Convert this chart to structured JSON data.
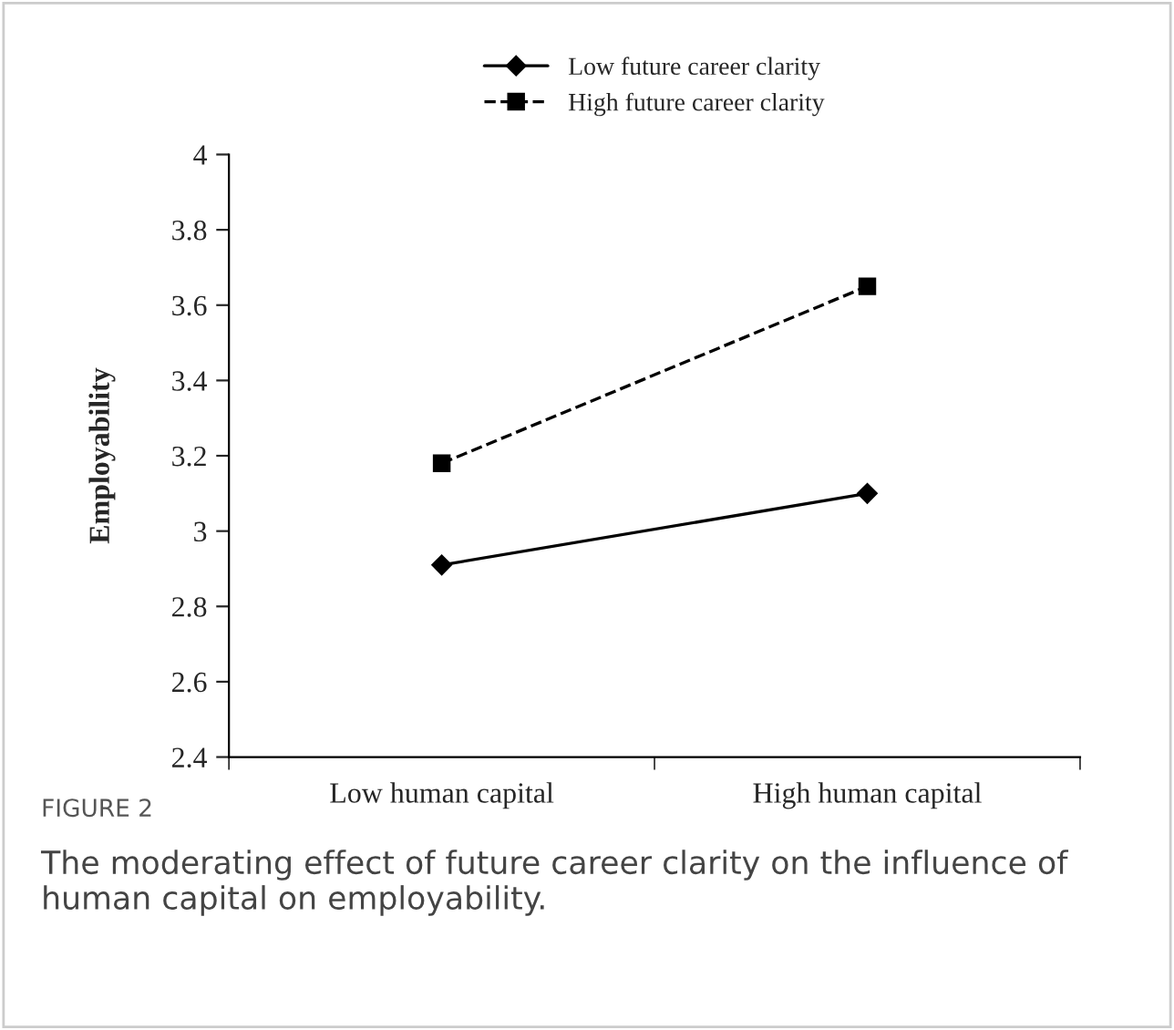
{
  "chart_data": {
    "type": "line",
    "ylabel": "Employability",
    "categories": [
      "Low human capital",
      "High human capital"
    ],
    "series": [
      {
        "name": "Low future career clarity",
        "color": "#000000",
        "values": [
          2.91,
          3.1
        ],
        "marker": "diamond",
        "line_style": "solid"
      },
      {
        "name": "High future career clarity",
        "color": "#000000",
        "values": [
          3.18,
          3.65
        ],
        "marker": "square",
        "line_style": "dashed"
      }
    ],
    "ylim": [
      2.4,
      4
    ],
    "yticks": [
      2.4,
      2.6,
      2.8,
      3,
      3.2,
      3.4,
      3.6,
      3.8,
      4
    ],
    "grid": false,
    "legend": "top",
    "annotations": [
      "FIGURE 2",
      "The moderating effect of future career clarity on the influence of human capital on employability."
    ]
  }
}
